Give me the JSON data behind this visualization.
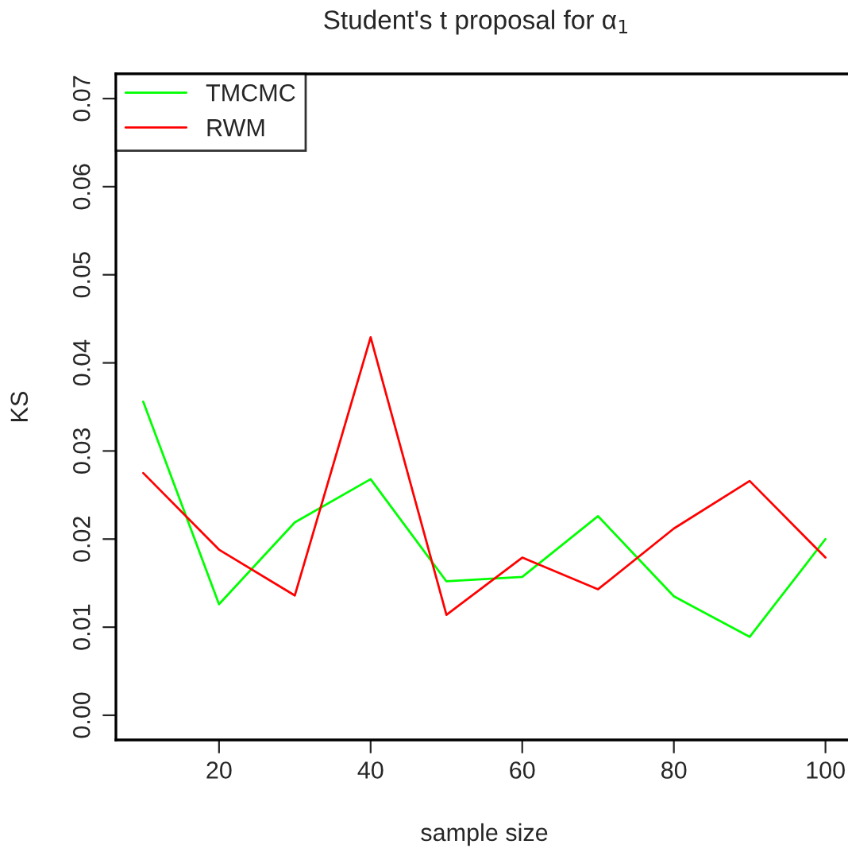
{
  "chart_data": {
    "type": "line",
    "title": "Student's t proposal for α$_{1}$",
    "xlabel": "sample size",
    "ylabel": "KS",
    "x": [
      10,
      20,
      30,
      40,
      50,
      60,
      70,
      80,
      90,
      100
    ],
    "series": [
      {
        "name": "TMCMC",
        "color": "#00ff00",
        "values": [
          0.0356,
          0.0126,
          0.0219,
          0.0268,
          0.0152,
          0.0157,
          0.0226,
          0.0135,
          0.0089,
          0.02
        ]
      },
      {
        "name": "RWM",
        "color": "#ff0000",
        "values": [
          0.0275,
          0.0188,
          0.0136,
          0.0429,
          0.0114,
          0.0179,
          0.0143,
          0.0212,
          0.0266,
          0.0179
        ]
      }
    ],
    "xlim": [
      6.4,
      103.6
    ],
    "xticks": [
      20,
      40,
      60,
      80,
      100
    ],
    "ylim": [
      -0.0028,
      0.0728
    ],
    "yticks": [
      {
        "value": 0,
        "label": "0.00"
      },
      {
        "value": 0.01,
        "label": "0.01"
      },
      {
        "value": 0.02,
        "label": "0.02"
      },
      {
        "value": 0.03,
        "label": "0.03"
      },
      {
        "value": 0.04,
        "label": "0.04"
      },
      {
        "value": 0.05,
        "label": "0.05"
      },
      {
        "value": 0.06,
        "label": "0.06"
      },
      {
        "value": 0.07,
        "label": "0.07"
      }
    ],
    "grid": false,
    "legend": "top left",
    "marker": "none",
    "line_style": "solid"
  }
}
